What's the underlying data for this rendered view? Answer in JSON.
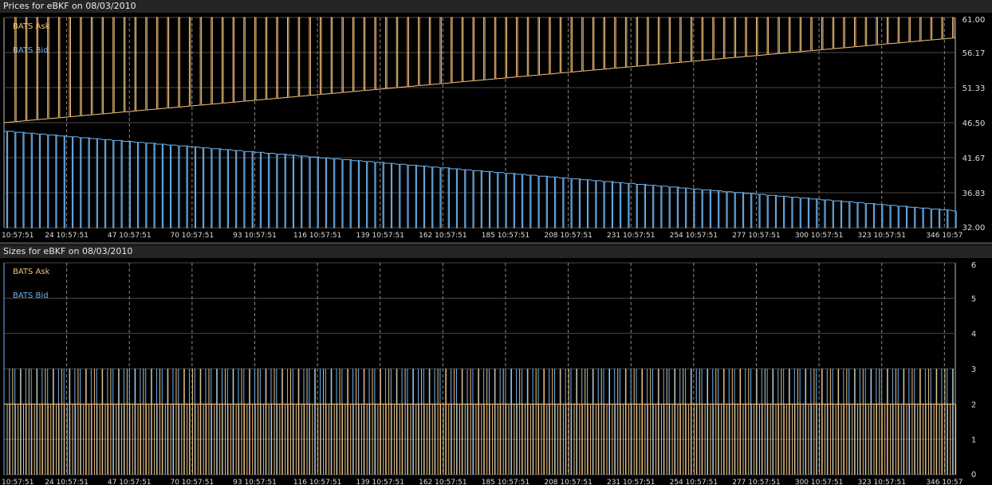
{
  "chart_data": [
    {
      "type": "line",
      "title": "Prices for  eBKF  on  08/03/2010",
      "x_tick_labels": [
        "10:57:51",
        "24 10:57:51",
        "47 10:57:51",
        "70 10:57:51",
        "93 10:57:51",
        "116 10:57:51",
        "139 10:57:51",
        "162 10:57:51",
        "185 10:57:51",
        "208 10:57:51",
        "231 10:57:51",
        "254 10:57:51",
        "277 10:57:51",
        "300 10:57:51",
        "323 10:57:51",
        "346 10:57"
      ],
      "x_ticks": [
        1,
        24,
        47,
        70,
        93,
        116,
        139,
        162,
        185,
        208,
        231,
        254,
        277,
        300,
        323,
        346
      ],
      "xlim": [
        1,
        350
      ],
      "y_tick_labels": [
        "61.00",
        "56.17",
        "51.33",
        "46.50",
        "41.67",
        "36.83",
        "32.00"
      ],
      "ylim": [
        32.0,
        61.0
      ],
      "grid": true,
      "legend_placement": "top-left",
      "series": [
        {
          "name": "BATS Ask",
          "color": "#f5c27a",
          "base_start": 46.5,
          "base_end": 58.2,
          "spike_value": 61.0,
          "spike_period": 4
        },
        {
          "name": "BATS Bid",
          "color": "#6fb4f0",
          "base_start": 45.3,
          "base_end": 34.3,
          "drop_value": 32.0,
          "drop_period": 3
        }
      ]
    },
    {
      "type": "bar",
      "title": "Sizes for  eBKF  on  08/03/2010",
      "x_tick_labels": [
        "10:57:51",
        "24 10:57:51",
        "47 10:57:51",
        "70 10:57:51",
        "93 10:57:51",
        "116 10:57:51",
        "139 10:57:51",
        "162 10:57:51",
        "185 10:57:51",
        "208 10:57:51",
        "231 10:57:51",
        "254 10:57:51",
        "277 10:57:51",
        "300 10:57:51",
        "323 10:57:51",
        "346 10:57"
      ],
      "x_ticks": [
        1,
        24,
        47,
        70,
        93,
        116,
        139,
        162,
        185,
        208,
        231,
        254,
        277,
        300,
        323,
        346
      ],
      "xlim": [
        1,
        350
      ],
      "y_tick_labels": [
        "6",
        "5",
        "4",
        "3",
        "2",
        "1",
        "0"
      ],
      "ylim": [
        0,
        6
      ],
      "grid": true,
      "legend_placement": "top-left",
      "series": [
        {
          "name": "BATS Ask",
          "color": "#f5c27a",
          "typical_value": 2,
          "spike_value": 3
        },
        {
          "name": "BATS Bid",
          "color": "#6fb4f0",
          "typical_value": 3,
          "first_value": 6
        }
      ]
    }
  ]
}
